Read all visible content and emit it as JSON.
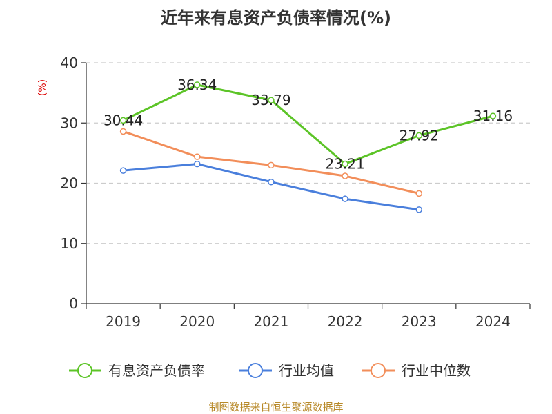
{
  "chart_data": {
    "type": "line",
    "title": "近年来有息资产负债率情况(%)",
    "ylabel": "(%)",
    "xlabel": "",
    "categories": [
      "2019",
      "2020",
      "2021",
      "2022",
      "2023",
      "2024"
    ],
    "ylim": [
      0,
      40
    ],
    "yticks": [
      0,
      10,
      20,
      30,
      40
    ],
    "grid": true,
    "legend_position": "bottom",
    "series": [
      {
        "name": "有息资产负债率",
        "color": "#5cc427",
        "values": [
          30.44,
          36.34,
          33.79,
          23.21,
          27.92,
          31.16
        ],
        "labels": [
          "30.44",
          "36.34",
          "33.79",
          "23.21",
          "27.92",
          "31.16"
        ],
        "show_labels": true
      },
      {
        "name": "行业均值",
        "color": "#4a7fdc",
        "values": [
          22.1,
          23.2,
          20.2,
          17.4,
          15.6,
          null
        ],
        "show_labels": false
      },
      {
        "name": "行业中位数",
        "color": "#f28e5a",
        "values": [
          28.6,
          24.4,
          23.0,
          21.2,
          18.3,
          null
        ],
        "show_labels": false
      }
    ],
    "source": "制图数据来自恒生聚源数据库"
  }
}
